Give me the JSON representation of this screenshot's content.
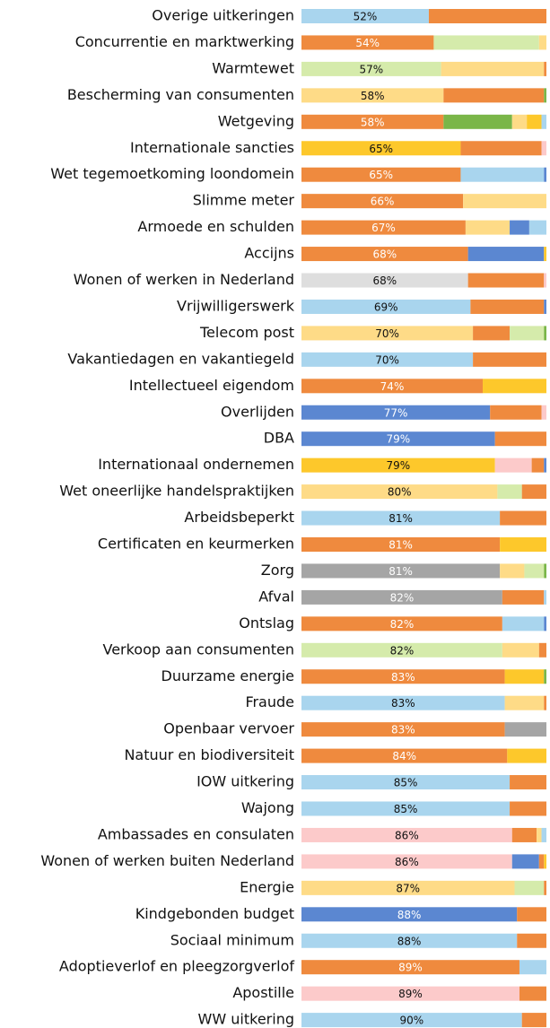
{
  "chart_data": {
    "type": "stacked-bar",
    "orientation": "horizontal",
    "xlim": [
      0,
      100
    ],
    "categories": [
      "Overige uitkeringen",
      "Concurrentie en marktwerking",
      "Warmtewet",
      "Bescherming van consumenten",
      "Wetgeving",
      "Internationale sancties",
      "Wet tegemoetkoming loondomein",
      "Slimme meter",
      "Armoede en schulden",
      "Accijns",
      "Wonen of werken in Nederland",
      "Vrijwilligerswerk",
      "Telecom post",
      "Vakantiedagen en vakantiegeld",
      "Intellectueel eigendom",
      "Overlijden",
      "DBA",
      "Internationaal ondernemen",
      "Wet oneerlijke handelspraktijken",
      "Arbeidsbeperkt",
      "Certificaten en keurmerken",
      "Zorg",
      "Afval",
      "Ontslag",
      "Verkoop aan consumenten",
      "Duurzame energie",
      "Fraude",
      "Openbaar vervoer",
      "Natuur en biodiversiteit",
      "IOW uitkering",
      "Wajong",
      "Ambassades en consulaten",
      "Wonen of werken buiten Nederland",
      "Energie",
      "Kindgebonden budget",
      "Sociaal minimum",
      "Adoptieverlof en pleegzorgverlof",
      "Apostille",
      "WW uitkering"
    ],
    "value_labels": [
      "52%",
      "54%",
      "57%",
      "58%",
      "58%",
      "65%",
      "65%",
      "66%",
      "67%",
      "68%",
      "68%",
      "69%",
      "70%",
      "70%",
      "74%",
      "77%",
      "79%",
      "79%",
      "80%",
      "81%",
      "81%",
      "81%",
      "82%",
      "82%",
      "82%",
      "83%",
      "83%",
      "83%",
      "84%",
      "85%",
      "85%",
      "86%",
      "86%",
      "87%",
      "88%",
      "88%",
      "89%",
      "89%",
      "90%"
    ],
    "segments": [
      [
        {
          "value": 52,
          "color": "#a9d5ee"
        },
        {
          "value": 48,
          "color": "#ef8a3e"
        }
      ],
      [
        {
          "value": 54,
          "color": "#ef8a3e"
        },
        {
          "value": 43,
          "color": "#d5ebab"
        },
        {
          "value": 3,
          "color": "#fedb87"
        }
      ],
      [
        {
          "value": 57,
          "color": "#d5ebab"
        },
        {
          "value": 42,
          "color": "#fedb87"
        },
        {
          "value": 1,
          "color": "#ef8a3e"
        }
      ],
      [
        {
          "value": 58,
          "color": "#fedb87"
        },
        {
          "value": 41,
          "color": "#ef8a3e"
        },
        {
          "value": 1,
          "color": "#7ab648"
        }
      ],
      [
        {
          "value": 58,
          "color": "#ef8a3e"
        },
        {
          "value": 28,
          "color": "#7ab648"
        },
        {
          "value": 6,
          "color": "#fedb87"
        },
        {
          "value": 6,
          "color": "#fdc82b"
        },
        {
          "value": 2,
          "color": "#a9d5ee"
        }
      ],
      [
        {
          "value": 65,
          "color": "#fdc82b"
        },
        {
          "value": 33,
          "color": "#ef8a3e"
        },
        {
          "value": 2,
          "color": "#fccaca"
        }
      ],
      [
        {
          "value": 65,
          "color": "#ef8a3e"
        },
        {
          "value": 34,
          "color": "#a9d5ee"
        },
        {
          "value": 1,
          "color": "#5b87d1"
        }
      ],
      [
        {
          "value": 66,
          "color": "#ef8a3e"
        },
        {
          "value": 34,
          "color": "#fedb87"
        }
      ],
      [
        {
          "value": 67,
          "color": "#ef8a3e"
        },
        {
          "value": 18,
          "color": "#fedb87"
        },
        {
          "value": 8,
          "color": "#5b87d1"
        },
        {
          "value": 7,
          "color": "#a9d5ee"
        }
      ],
      [
        {
          "value": 68,
          "color": "#ef8a3e"
        },
        {
          "value": 31,
          "color": "#5b87d1"
        },
        {
          "value": 1,
          "color": "#fdc82b"
        }
      ],
      [
        {
          "value": 68,
          "color": "#dedede"
        },
        {
          "value": 31,
          "color": "#ef8a3e"
        },
        {
          "value": 1,
          "color": "#fccaca"
        }
      ],
      [
        {
          "value": 69,
          "color": "#a9d5ee"
        },
        {
          "value": 30,
          "color": "#ef8a3e"
        },
        {
          "value": 1,
          "color": "#5b87d1"
        }
      ],
      [
        {
          "value": 70,
          "color": "#fedb87"
        },
        {
          "value": 15,
          "color": "#ef8a3e"
        },
        {
          "value": 14,
          "color": "#d5ebab"
        },
        {
          "value": 1,
          "color": "#7ab648"
        }
      ],
      [
        {
          "value": 70,
          "color": "#a9d5ee"
        },
        {
          "value": 30,
          "color": "#ef8a3e"
        }
      ],
      [
        {
          "value": 74,
          "color": "#ef8a3e"
        },
        {
          "value": 26,
          "color": "#fdc82b"
        }
      ],
      [
        {
          "value": 77,
          "color": "#5b87d1"
        },
        {
          "value": 21,
          "color": "#ef8a3e"
        },
        {
          "value": 2,
          "color": "#fccaca"
        }
      ],
      [
        {
          "value": 79,
          "color": "#5b87d1"
        },
        {
          "value": 21,
          "color": "#ef8a3e"
        }
      ],
      [
        {
          "value": 79,
          "color": "#fdc82b"
        },
        {
          "value": 15,
          "color": "#fccaca"
        },
        {
          "value": 5,
          "color": "#ef8a3e"
        },
        {
          "value": 1,
          "color": "#5b87d1"
        }
      ],
      [
        {
          "value": 80,
          "color": "#fedb87"
        },
        {
          "value": 10,
          "color": "#d5ebab"
        },
        {
          "value": 10,
          "color": "#ef8a3e"
        }
      ],
      [
        {
          "value": 81,
          "color": "#a9d5ee"
        },
        {
          "value": 19,
          "color": "#ef8a3e"
        }
      ],
      [
        {
          "value": 81,
          "color": "#ef8a3e"
        },
        {
          "value": 19,
          "color": "#fdc82b"
        }
      ],
      [
        {
          "value": 81,
          "color": "#a5a5a5"
        },
        {
          "value": 10,
          "color": "#fedb87"
        },
        {
          "value": 8,
          "color": "#d5ebab"
        },
        {
          "value": 1,
          "color": "#7ab648"
        }
      ],
      [
        {
          "value": 82,
          "color": "#a5a5a5"
        },
        {
          "value": 17,
          "color": "#ef8a3e"
        },
        {
          "value": 1,
          "color": "#a9d5ee"
        }
      ],
      [
        {
          "value": 82,
          "color": "#ef8a3e"
        },
        {
          "value": 17,
          "color": "#a9d5ee"
        },
        {
          "value": 1,
          "color": "#5b87d1"
        }
      ],
      [
        {
          "value": 82,
          "color": "#d5ebab"
        },
        {
          "value": 15,
          "color": "#fedb87"
        },
        {
          "value": 3,
          "color": "#ef8a3e"
        }
      ],
      [
        {
          "value": 83,
          "color": "#ef8a3e"
        },
        {
          "value": 16,
          "color": "#fdc82b"
        },
        {
          "value": 1,
          "color": "#7ab648"
        }
      ],
      [
        {
          "value": 83,
          "color": "#a9d5ee"
        },
        {
          "value": 16,
          "color": "#fedb87"
        },
        {
          "value": 1,
          "color": "#ef8a3e"
        }
      ],
      [
        {
          "value": 83,
          "color": "#ef8a3e"
        },
        {
          "value": 17,
          "color": "#a5a5a5"
        }
      ],
      [
        {
          "value": 84,
          "color": "#ef8a3e"
        },
        {
          "value": 16,
          "color": "#fdc82b"
        }
      ],
      [
        {
          "value": 85,
          "color": "#a9d5ee"
        },
        {
          "value": 15,
          "color": "#ef8a3e"
        }
      ],
      [
        {
          "value": 85,
          "color": "#a9d5ee"
        },
        {
          "value": 15,
          "color": "#ef8a3e"
        }
      ],
      [
        {
          "value": 86,
          "color": "#fccaca"
        },
        {
          "value": 10,
          "color": "#ef8a3e"
        },
        {
          "value": 2,
          "color": "#fedb87"
        },
        {
          "value": 2,
          "color": "#a9d5ee"
        }
      ],
      [
        {
          "value": 86,
          "color": "#fccaca"
        },
        {
          "value": 11,
          "color": "#5b87d1"
        },
        {
          "value": 2,
          "color": "#ef8a3e"
        },
        {
          "value": 1,
          "color": "#fdc82b"
        }
      ],
      [
        {
          "value": 87,
          "color": "#fedb87"
        },
        {
          "value": 12,
          "color": "#d5ebab"
        },
        {
          "value": 1,
          "color": "#ef8a3e"
        }
      ],
      [
        {
          "value": 88,
          "color": "#5b87d1"
        },
        {
          "value": 12,
          "color": "#ef8a3e"
        }
      ],
      [
        {
          "value": 88,
          "color": "#a9d5ee"
        },
        {
          "value": 12,
          "color": "#ef8a3e"
        }
      ],
      [
        {
          "value": 89,
          "color": "#ef8a3e"
        },
        {
          "value": 11,
          "color": "#a9d5ee"
        }
      ],
      [
        {
          "value": 89,
          "color": "#fccaca"
        },
        {
          "value": 11,
          "color": "#ef8a3e"
        }
      ],
      [
        {
          "value": 90,
          "color": "#a9d5ee"
        },
        {
          "value": 10,
          "color": "#ef8a3e"
        }
      ]
    ]
  }
}
